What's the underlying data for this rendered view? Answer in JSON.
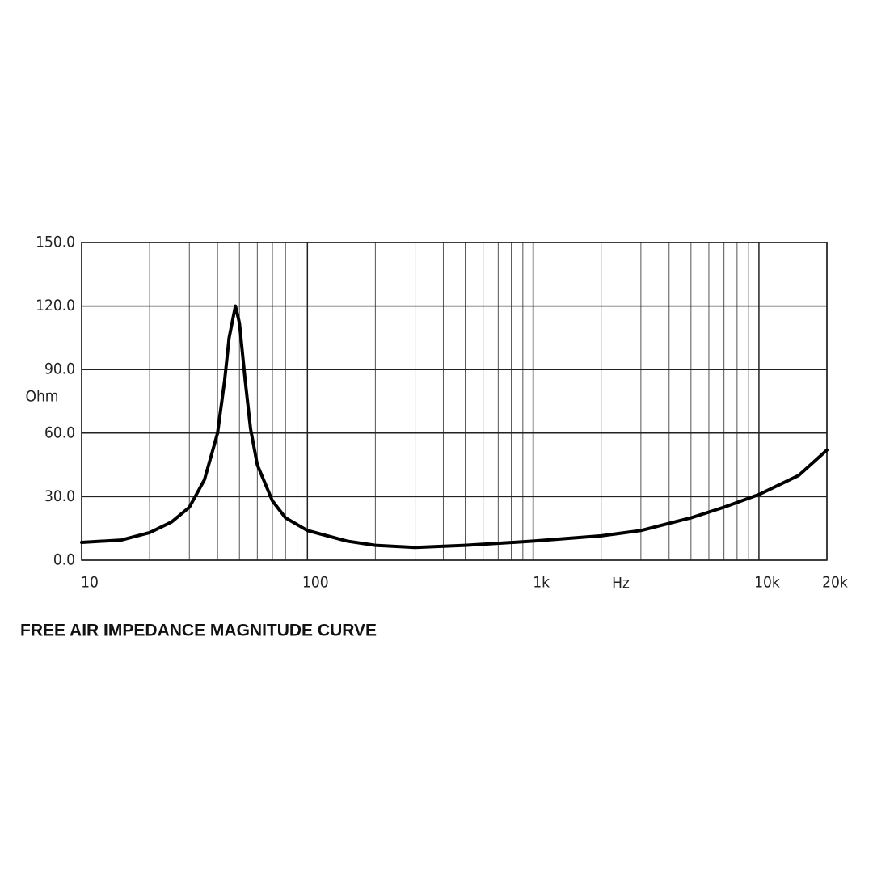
{
  "chart_data": {
    "type": "line",
    "title": "FREE AIR IMPEDANCE MAGNITUDE CURVE",
    "y_label": "Ohm",
    "x_label": "Hz",
    "log_x": true,
    "grid": true,
    "color": "#000000",
    "x": [
      10,
      15,
      20,
      25,
      30,
      35,
      40,
      43,
      45,
      48,
      50,
      53,
      56,
      60,
      70,
      80,
      100,
      150,
      200,
      300,
      500,
      1000,
      2000,
      3000,
      5000,
      7000,
      10000,
      15000,
      20000
    ],
    "values": [
      8.4,
      9.5,
      13,
      18,
      25,
      38,
      60,
      85,
      105,
      120,
      112,
      85,
      62,
      45,
      28,
      20,
      14,
      9,
      7,
      6,
      7,
      9,
      11.5,
      14,
      20,
      25,
      31,
      40,
      52
    ],
    "xlim": [
      10,
      20000
    ],
    "xticks": [
      10,
      100,
      {
        "value": 1000,
        "label": "1k"
      },
      {
        "value": 10000,
        "label": "10k"
      },
      {
        "value": 20000,
        "label": "20k"
      }
    ],
    "xgrid": [
      20,
      30,
      40,
      50,
      60,
      70,
      80,
      90,
      200,
      300,
      400,
      500,
      600,
      700,
      800,
      900,
      2000,
      3000,
      4000,
      5000,
      6000,
      7000,
      8000,
      9000
    ],
    "ylim": [
      0,
      150
    ],
    "yticks": [
      {
        "value": 0,
        "label": "0.0"
      },
      {
        "value": 30,
        "label": "30.0"
      },
      {
        "value": 60,
        "label": "60.0"
      },
      {
        "value": 90,
        "label": "90.0"
      },
      {
        "value": 120,
        "label": "120.0"
      },
      {
        "value": 150,
        "label": "150.0"
      }
    ]
  }
}
